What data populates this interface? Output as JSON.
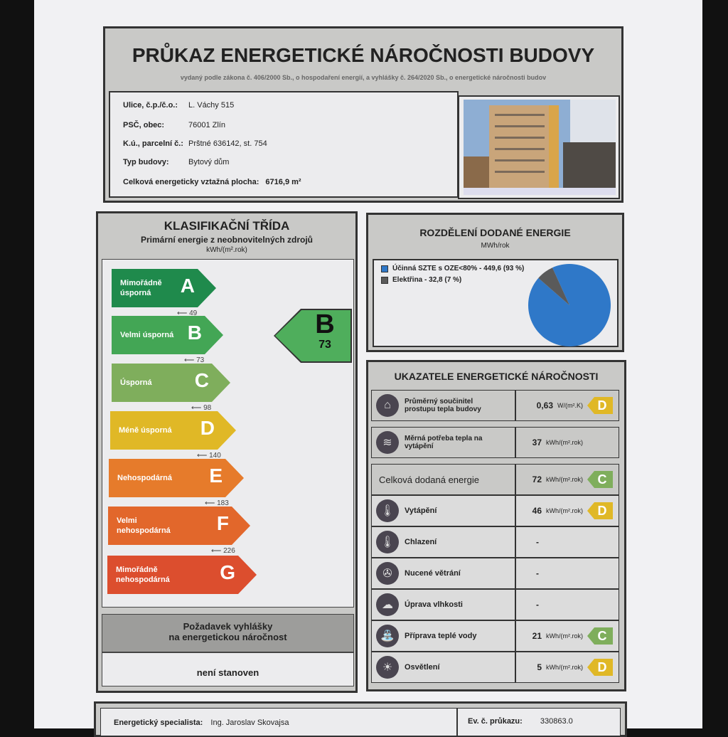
{
  "header": {
    "title": "PRŮKAZ ENERGETICKÉ NÁROČNOSTI BUDOVY",
    "subtitle": "vydaný podle zákona č. 406/2000 Sb., o hospodaření energií, a vyhlášky č. 264/2020 Sb., o energetické náročnosti budov"
  },
  "building": {
    "fields": [
      {
        "label": "Ulice, č.p./č.o.:",
        "value": "L. Váchy 515"
      },
      {
        "label": "PSČ, obec:",
        "value": "76001 Zlín"
      },
      {
        "label": "K.ú., parcelní č.:",
        "value": "Prštné 636142, st. 754"
      },
      {
        "label": "Typ budovy:",
        "value": "Bytový dům"
      }
    ],
    "area_label": "Celková energeticky vztažná plocha:",
    "area_value": "6716,9 m²"
  },
  "classification": {
    "title": "KLASIFIKAČNÍ TŘÍDA",
    "subtitle": "Primární energie z neobnovitelných zdrojů",
    "unit": "kWh/(m².rok)",
    "classes": [
      {
        "letter": "A",
        "name": "Mimořádně úsporná",
        "color": "#1f8a4c",
        "threshold": "49"
      },
      {
        "letter": "B",
        "name": "Velmi úsporná",
        "color": "#43a655",
        "threshold": "73"
      },
      {
        "letter": "C",
        "name": "Úsporná",
        "color": "#7fae5c",
        "threshold": "98"
      },
      {
        "letter": "D",
        "name": "Méně úsporná",
        "color": "#e0b826",
        "threshold": "140"
      },
      {
        "letter": "E",
        "name": "Nehospodárná",
        "color": "#e67b2b",
        "threshold": "183"
      },
      {
        "letter": "F",
        "name": "Velmi nehospodárná",
        "color": "#e2672b",
        "threshold": "226"
      },
      {
        "letter": "G",
        "name": "Mimořádně nehospodárná",
        "color": "#dc4e2e",
        "threshold": ""
      }
    ],
    "result": {
      "letter": "B",
      "value": "73",
      "color": "#4fae5c"
    },
    "requirement_title_1": "Požadavek vyhlášky",
    "requirement_title_2": "na energetickou náročnost",
    "requirement_value": "není stanoven"
  },
  "distribution": {
    "title": "ROZDĚLENÍ DODANÉ ENERGIE",
    "unit": "MWh/rok"
  },
  "chart_data": {
    "type": "pie",
    "unit": "MWh/rok",
    "legend": "top-left",
    "slices": [
      {
        "name": "Účinná SZTE s OZE<80%",
        "value": 449.6,
        "percent": 93,
        "label": "Účinná SZTE s OZE<80% - 449,6 (93 %)",
        "color": "#2f78c8"
      },
      {
        "name": "Elektřina",
        "value": 32.8,
        "percent": 7,
        "label": "Elektřina - 32,8 (7 %)",
        "color": "#5a5a5a"
      }
    ]
  },
  "indicators": {
    "title": "UKAZATELE ENERGETICKÉ NÁROČNOSTI",
    "rows": [
      {
        "icon": "house-icon",
        "glyph": "⌂",
        "label": "Průměrný součinitel prostupu tepla budovy",
        "value": "0,63",
        "unit": "W/(m².K)",
        "class": "D",
        "color": "#e0b826"
      },
      {
        "icon": "heat-demand-icon",
        "glyph": "≋",
        "label": "Měrná potřeba tepla na vytápění",
        "value": "37",
        "unit": "kWh/(m².rok)",
        "class": "",
        "color": ""
      },
      {
        "icon": "",
        "glyph": "",
        "label": "Celková dodaná energie",
        "value": "72",
        "unit": "kWh/(m².rok)",
        "class": "C",
        "color": "#7fae5c"
      },
      {
        "icon": "heating-thermometer-icon",
        "glyph": "🌡",
        "label": "Vytápění",
        "value": "46",
        "unit": "kWh/(m².rok)",
        "class": "D",
        "color": "#e0b826"
      },
      {
        "icon": "cooling-thermometer-icon",
        "glyph": "🌡",
        "label": "Chlazení",
        "value": "-",
        "unit": "",
        "class": "",
        "color": ""
      },
      {
        "icon": "fan-icon",
        "glyph": "✇",
        "label": "Nucené větrání",
        "value": "-",
        "unit": "",
        "class": "",
        "color": ""
      },
      {
        "icon": "humidity-icon",
        "glyph": "☁",
        "label": "Úprava vlhkosti",
        "value": "-",
        "unit": "",
        "class": "",
        "color": ""
      },
      {
        "icon": "tap-icon",
        "glyph": "⛲",
        "label": "Příprava teplé vody",
        "value": "21",
        "unit": "kWh/(m².rok)",
        "class": "C",
        "color": "#7fae5c"
      },
      {
        "icon": "light-bulb-icon",
        "glyph": "☀",
        "label": "Osvětlení",
        "value": "5",
        "unit": "kWh/(m².rok)",
        "class": "D",
        "color": "#e0b826"
      }
    ]
  },
  "footer": {
    "specialist_label": "Energetický specialista:",
    "specialist_value": "Ing. Jaroslav Skovajsa",
    "cert_label": "Ev. č. průkazu:",
    "cert_value": "330863.0"
  }
}
